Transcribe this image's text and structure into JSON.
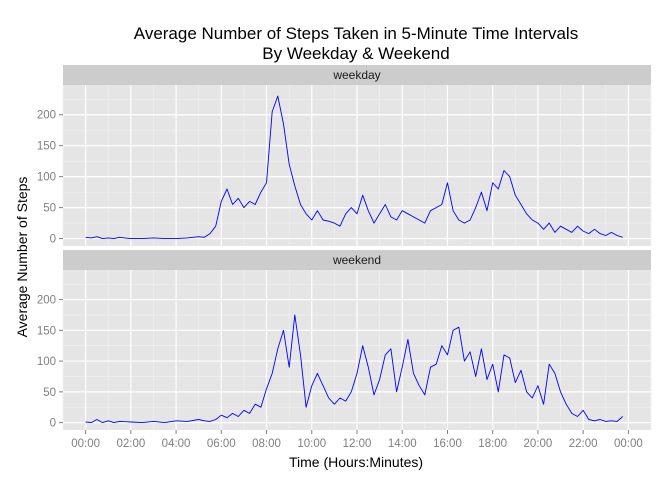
{
  "chart_data": {
    "type": "line",
    "title": [
      "Average Number of Steps Taken in 5-Minute Time Intervals",
      "By Weekday & Weekend"
    ],
    "xlabel": "Time (Hours:Minutes)",
    "ylabel": "Average Number of Steps",
    "x_unit": "hours",
    "xlim": [
      -1,
      25
    ],
    "ylim": [
      -12,
      248
    ],
    "x_ticks": [
      0,
      2,
      4,
      6,
      8,
      10,
      12,
      14,
      16,
      18,
      20,
      22,
      24
    ],
    "x_tick_labels": [
      "00:00",
      "02:00",
      "04:00",
      "06:00",
      "08:00",
      "10:00",
      "12:00",
      "14:00",
      "16:00",
      "18:00",
      "20:00",
      "22:00",
      "00:00"
    ],
    "y_ticks": [
      0,
      50,
      100,
      150,
      200
    ],
    "grid": true,
    "line_color": "#0000ff",
    "panel_background": "#e5e5e5",
    "strip_background": "#cccccc",
    "facets": [
      {
        "label": "weekday",
        "x": [
          0,
          0.25,
          0.5,
          0.75,
          1,
          1.25,
          1.5,
          2,
          2.5,
          3,
          3.5,
          4,
          4.5,
          5,
          5.25,
          5.5,
          5.75,
          6,
          6.25,
          6.5,
          6.75,
          7,
          7.25,
          7.5,
          7.75,
          8,
          8.25,
          8.5,
          8.75,
          9,
          9.25,
          9.5,
          9.75,
          10,
          10.25,
          10.5,
          10.75,
          11,
          11.25,
          11.5,
          11.75,
          12,
          12.25,
          12.5,
          12.75,
          13,
          13.25,
          13.5,
          13.75,
          14,
          14.25,
          14.5,
          14.75,
          15,
          15.25,
          15.5,
          15.75,
          16,
          16.25,
          16.5,
          16.75,
          17,
          17.25,
          17.5,
          17.75,
          18,
          18.25,
          18.5,
          18.75,
          19,
          19.25,
          19.5,
          19.75,
          20,
          20.25,
          20.5,
          20.75,
          21,
          21.25,
          21.5,
          21.75,
          22,
          22.25,
          22.5,
          22.75,
          23,
          23.25,
          23.5,
          23.75
        ],
        "y": [
          2,
          1,
          3,
          0,
          1,
          0,
          2,
          0,
          0,
          1,
          0,
          0,
          1,
          3,
          2,
          8,
          20,
          60,
          80,
          55,
          65,
          50,
          60,
          55,
          75,
          90,
          205,
          230,
          185,
          120,
          85,
          55,
          40,
          30,
          45,
          30,
          28,
          25,
          20,
          40,
          50,
          40,
          70,
          45,
          25,
          40,
          55,
          35,
          30,
          45,
          40,
          35,
          30,
          25,
          45,
          50,
          55,
          90,
          45,
          30,
          25,
          30,
          50,
          75,
          45,
          90,
          80,
          110,
          100,
          70,
          55,
          40,
          30,
          25,
          15,
          25,
          10,
          20,
          15,
          10,
          20,
          12,
          8,
          15,
          8,
          5,
          10,
          5,
          2
        ]
      },
      {
        "label": "weekend",
        "x": [
          0,
          0.25,
          0.5,
          0.75,
          1,
          1.25,
          1.5,
          2,
          2.5,
          3,
          3.5,
          4,
          4.5,
          5,
          5.25,
          5.5,
          5.75,
          6,
          6.25,
          6.5,
          6.75,
          7,
          7.25,
          7.5,
          7.75,
          8,
          8.25,
          8.5,
          8.75,
          9,
          9.25,
          9.5,
          9.75,
          10,
          10.25,
          10.5,
          10.75,
          11,
          11.25,
          11.5,
          11.75,
          12,
          12.25,
          12.5,
          12.75,
          13,
          13.25,
          13.5,
          13.75,
          14,
          14.25,
          14.5,
          14.75,
          15,
          15.25,
          15.5,
          15.75,
          16,
          16.25,
          16.5,
          16.75,
          17,
          17.25,
          17.5,
          17.75,
          18,
          18.25,
          18.5,
          18.75,
          19,
          19.25,
          19.5,
          19.75,
          20,
          20.25,
          20.5,
          20.75,
          21,
          21.25,
          21.5,
          21.75,
          22,
          22.25,
          22.5,
          22.75,
          23,
          23.25,
          23.5,
          23.75
        ],
        "y": [
          1,
          0,
          5,
          0,
          3,
          0,
          2,
          1,
          0,
          2,
          0,
          3,
          2,
          5,
          3,
          2,
          5,
          12,
          8,
          15,
          10,
          20,
          15,
          30,
          25,
          55,
          80,
          120,
          150,
          90,
          175,
          110,
          25,
          60,
          80,
          60,
          40,
          30,
          40,
          35,
          50,
          80,
          125,
          90,
          45,
          70,
          110,
          120,
          50,
          90,
          135,
          80,
          60,
          45,
          90,
          95,
          125,
          110,
          150,
          155,
          100,
          115,
          75,
          120,
          70,
          95,
          50,
          110,
          105,
          65,
          85,
          50,
          40,
          60,
          30,
          95,
          80,
          50,
          30,
          15,
          10,
          20,
          5,
          3,
          5,
          2,
          3,
          2,
          10
        ]
      }
    ]
  }
}
